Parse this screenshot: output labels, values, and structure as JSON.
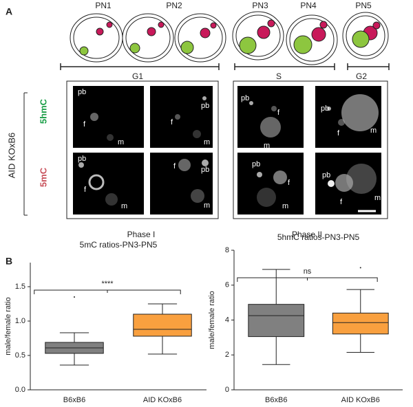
{
  "panel_a": {
    "label": "A",
    "stages": [
      "PN1",
      "PN2",
      "PN3",
      "PN4",
      "PN5"
    ],
    "phases_cycle": [
      "G1",
      "S",
      "G2"
    ],
    "rows": [
      "5hmC",
      "5mC"
    ],
    "strain": "AID KOxB6",
    "micrographs": [
      {
        "labels": [
          "pb",
          "f",
          "m"
        ]
      },
      {
        "labels": [
          "f",
          "pb",
          "m"
        ]
      },
      {
        "labels": [
          "pb",
          "f",
          "m"
        ]
      },
      {
        "labels": [
          "f",
          "pb",
          "m"
        ]
      },
      {
        "labels": [
          "pb",
          "f",
          "m"
        ]
      },
      {
        "labels": [
          "pb",
          "f",
          "m"
        ]
      },
      {
        "labels": [
          "pb",
          "f",
          "m"
        ]
      },
      {
        "labels": [
          "pb",
          "f",
          "m"
        ]
      }
    ],
    "phase_labels": [
      "Phase I",
      "Phase II"
    ]
  },
  "panel_b": {
    "label": "B"
  },
  "chart_data": [
    {
      "type": "box",
      "title": "5mC ratios-PN3-PN5",
      "y_label": "male/female ratio",
      "categories": [
        "B6xB6",
        "AID KOxB6"
      ],
      "colors": [
        "#808080",
        "#f9a03f"
      ],
      "boxes": [
        {
          "min": 0.36,
          "q1": 0.53,
          "median": 0.61,
          "q3": 0.69,
          "max": 0.83,
          "outliers": [
            1.35
          ]
        },
        {
          "min": 0.52,
          "q1": 0.78,
          "median": 0.88,
          "q3": 1.1,
          "max": 1.25,
          "outliers": []
        }
      ],
      "annotation": "****",
      "ylim": [
        0,
        1.85
      ],
      "yticks": [
        {
          "value": 0,
          "label": "0.0"
        },
        {
          "value": 0.5,
          "label": "0.5"
        },
        {
          "value": 1,
          "label": "1.0"
        },
        {
          "value": 1.5,
          "label": "1.5"
        }
      ]
    },
    {
      "type": "box",
      "title": "5hmC ratios-PN3-PN5",
      "y_label": "male/female ratio",
      "categories": [
        "B6xB6",
        "AID KOxB6"
      ],
      "colors": [
        "#808080",
        "#f9a03f"
      ],
      "boxes": [
        {
          "min": 1.45,
          "q1": 3.05,
          "median": 4.25,
          "q3": 4.9,
          "max": 6.9,
          "outliers": []
        },
        {
          "min": 2.15,
          "q1": 3.2,
          "median": 3.85,
          "q3": 4.4,
          "max": 5.75,
          "outliers": [
            7.0
          ]
        }
      ],
      "annotation": "ns",
      "ylim": [
        0,
        8
      ],
      "yticks": [
        0,
        2,
        4,
        6,
        8
      ]
    }
  ]
}
